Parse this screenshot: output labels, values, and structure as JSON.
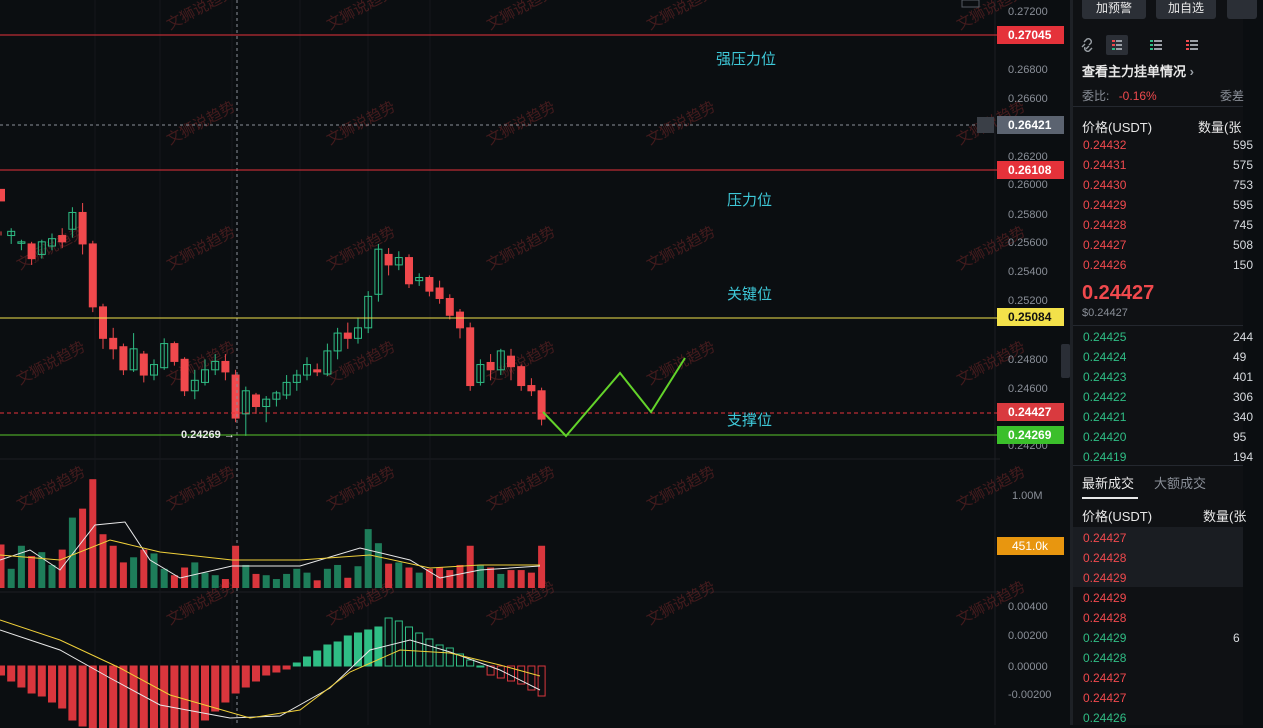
{
  "chart": {
    "price_axis": [
      "0.27200",
      "0.26800",
      "0.26600",
      "0.26200",
      "0.26000",
      "0.25800",
      "0.25600",
      "0.25400",
      "0.25200",
      "0.24800",
      "0.24600",
      "0.24200"
    ],
    "tags": {
      "strong_resistance": "0.27045",
      "crosshair": "0.26421",
      "resistance": "0.26108",
      "key": "0.25084",
      "current": "0.24427",
      "support": "0.24269"
    },
    "labels": {
      "strong_resistance": "强压力位",
      "resistance": "压力位",
      "key": "关键位",
      "support": "支撑位",
      "low_marker": "0.24269"
    },
    "volume_axis": "1.00M",
    "volume_tag": "451.0k",
    "macd_axis": [
      "0.00400",
      "0.00200",
      "0.00000",
      "-0.00200"
    ],
    "watermark": "文狮说趋势",
    "colors": {
      "up": "#2fbd85",
      "down": "#f0494d",
      "ma1": "#e8e8e8",
      "ma2": "#f0d03a",
      "key_line": "#f0e14a",
      "support_line": "#58c52a",
      "level_red": "#e5323a"
    }
  },
  "panel": {
    "buttons": [
      "加预警",
      "加自选"
    ],
    "orderbook_link": "查看主力挂单情况",
    "ratio_label": "委比:",
    "ratio_value": "-0.16%",
    "ratio_extra": "委差",
    "col_price": "价格(USDT)",
    "col_qty": "数量(张",
    "asks": [
      {
        "p": "0.24432",
        "q": "595"
      },
      {
        "p": "0.24431",
        "q": "575"
      },
      {
        "p": "0.24430",
        "q": "753"
      },
      {
        "p": "0.24429",
        "q": "595"
      },
      {
        "p": "0.24428",
        "q": "745"
      },
      {
        "p": "0.24427",
        "q": "508"
      },
      {
        "p": "0.24426",
        "q": "150"
      }
    ],
    "last_price": "0.24427",
    "last_price_sub": "$0.24427",
    "bids": [
      {
        "p": "0.24425",
        "q": "244"
      },
      {
        "p": "0.24424",
        "q": "49"
      },
      {
        "p": "0.24423",
        "q": "401"
      },
      {
        "p": "0.24422",
        "q": "306"
      },
      {
        "p": "0.24421",
        "q": "340"
      },
      {
        "p": "0.24420",
        "q": "95"
      },
      {
        "p": "0.24419",
        "q": "194"
      }
    ],
    "trades_tab_active": "最新成交",
    "trades_tab_other": "大额成交",
    "trades": [
      {
        "p": "0.24427",
        "c": "red",
        "q": ""
      },
      {
        "p": "0.24428",
        "c": "red",
        "q": ""
      },
      {
        "p": "0.24429",
        "c": "red",
        "q": ""
      },
      {
        "p": "0.24429",
        "c": "red",
        "q": ""
      },
      {
        "p": "0.24428",
        "c": "red",
        "q": ""
      },
      {
        "p": "0.24429",
        "c": "green",
        "q": "6"
      },
      {
        "p": "0.24428",
        "c": "green",
        "q": ""
      },
      {
        "p": "0.24427",
        "c": "red",
        "q": ""
      },
      {
        "p": "0.24427",
        "c": "red",
        "q": ""
      },
      {
        "p": "0.24426",
        "c": "green",
        "q": ""
      }
    ]
  }
}
